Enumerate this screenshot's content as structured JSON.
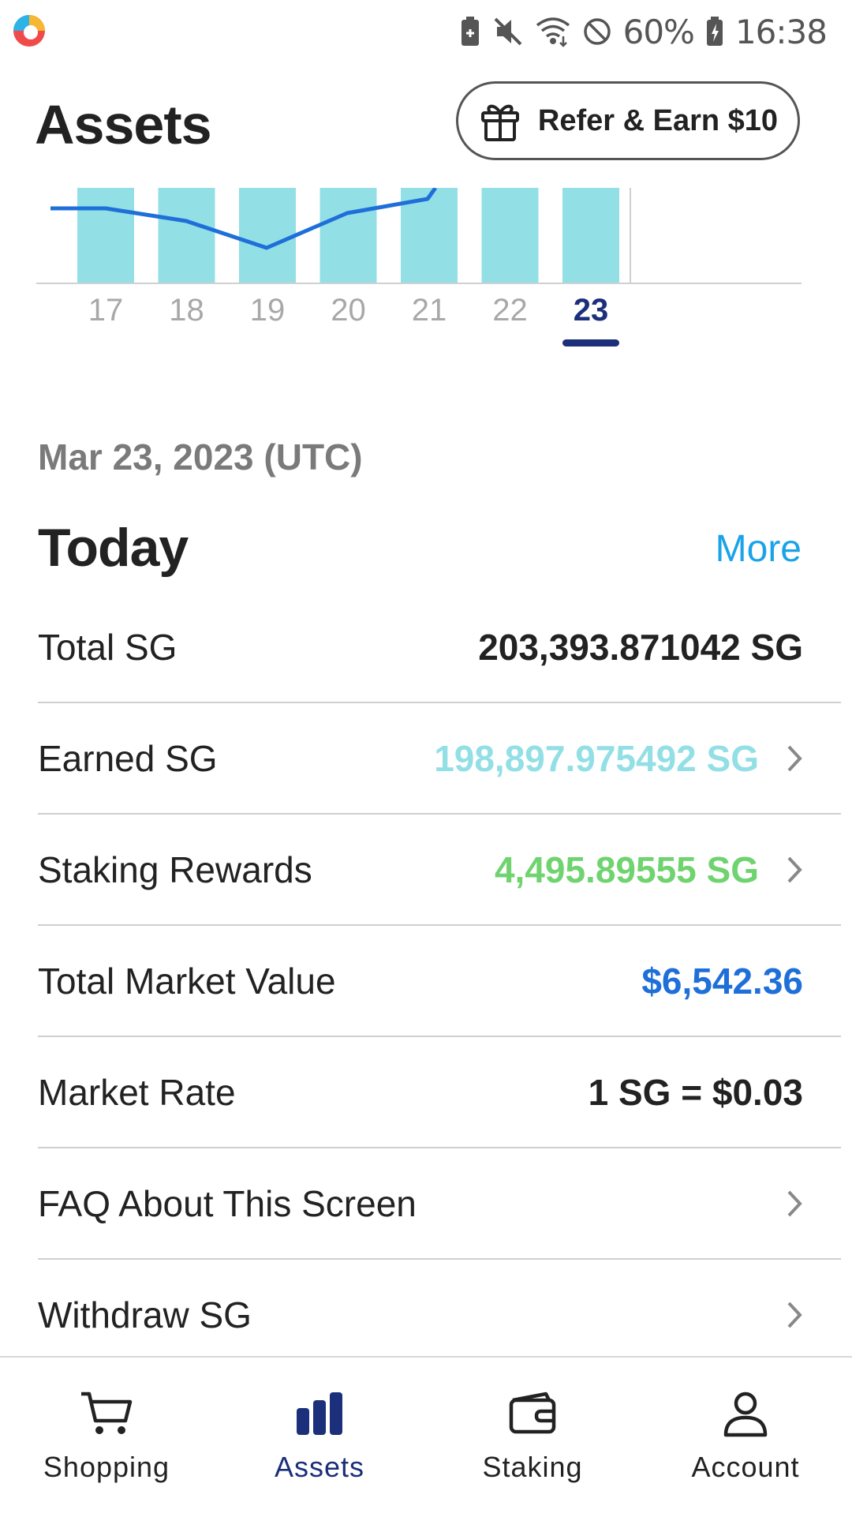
{
  "status_bar": {
    "battery_percent": "60%",
    "time": "16:38",
    "icons": [
      "app-logo-icon",
      "battery-saver-icon",
      "mute-icon",
      "wifi-icon",
      "do-not-disturb-icon",
      "battery-charging-icon"
    ]
  },
  "header": {
    "title": "Assets",
    "refer_button": "Refer & Earn $10",
    "refer_icon": "gift-icon"
  },
  "chart_data": {
    "type": "bar",
    "categories": [
      "17",
      "18",
      "19",
      "20",
      "21",
      "22",
      "23"
    ],
    "selected": "23",
    "colors": {
      "bar": "#93dfe6",
      "line": "#1f6fd9",
      "selected_label": "#1b2f7a",
      "axis": "#d0d0d0"
    }
  },
  "date_label": "Mar 23, 2023 (UTC)",
  "section": {
    "title": "Today",
    "more": "More"
  },
  "rows": [
    {
      "label": "Total SG",
      "value": "203,393.871042 SG",
      "color": "#222222",
      "chevron": false
    },
    {
      "label": "Earned SG",
      "value": "198,897.975492 SG",
      "color": "#93dfe6",
      "chevron": true
    },
    {
      "label": "Staking Rewards",
      "value": "4,495.89555 SG",
      "color": "#6fd36f",
      "chevron": true
    },
    {
      "label": "Total Market Value",
      "value": "$6,542.36",
      "color": "#1f6fd9",
      "chevron": false
    },
    {
      "label": "Market Rate",
      "value": "1 SG = $0.03",
      "color": "#222222",
      "chevron": false
    },
    {
      "label": "FAQ About This Screen",
      "value": "",
      "color": "#222222",
      "chevron": true
    },
    {
      "label": "Withdraw SG",
      "value": "",
      "color": "#222222",
      "chevron": true
    }
  ],
  "bottom_nav": [
    {
      "label": "Shopping",
      "icon": "cart-icon",
      "active": false
    },
    {
      "label": "Assets",
      "icon": "bar-chart-icon",
      "active": true
    },
    {
      "label": "Staking",
      "icon": "wallet-icon",
      "active": false
    },
    {
      "label": "Account",
      "icon": "person-icon",
      "active": false
    }
  ]
}
